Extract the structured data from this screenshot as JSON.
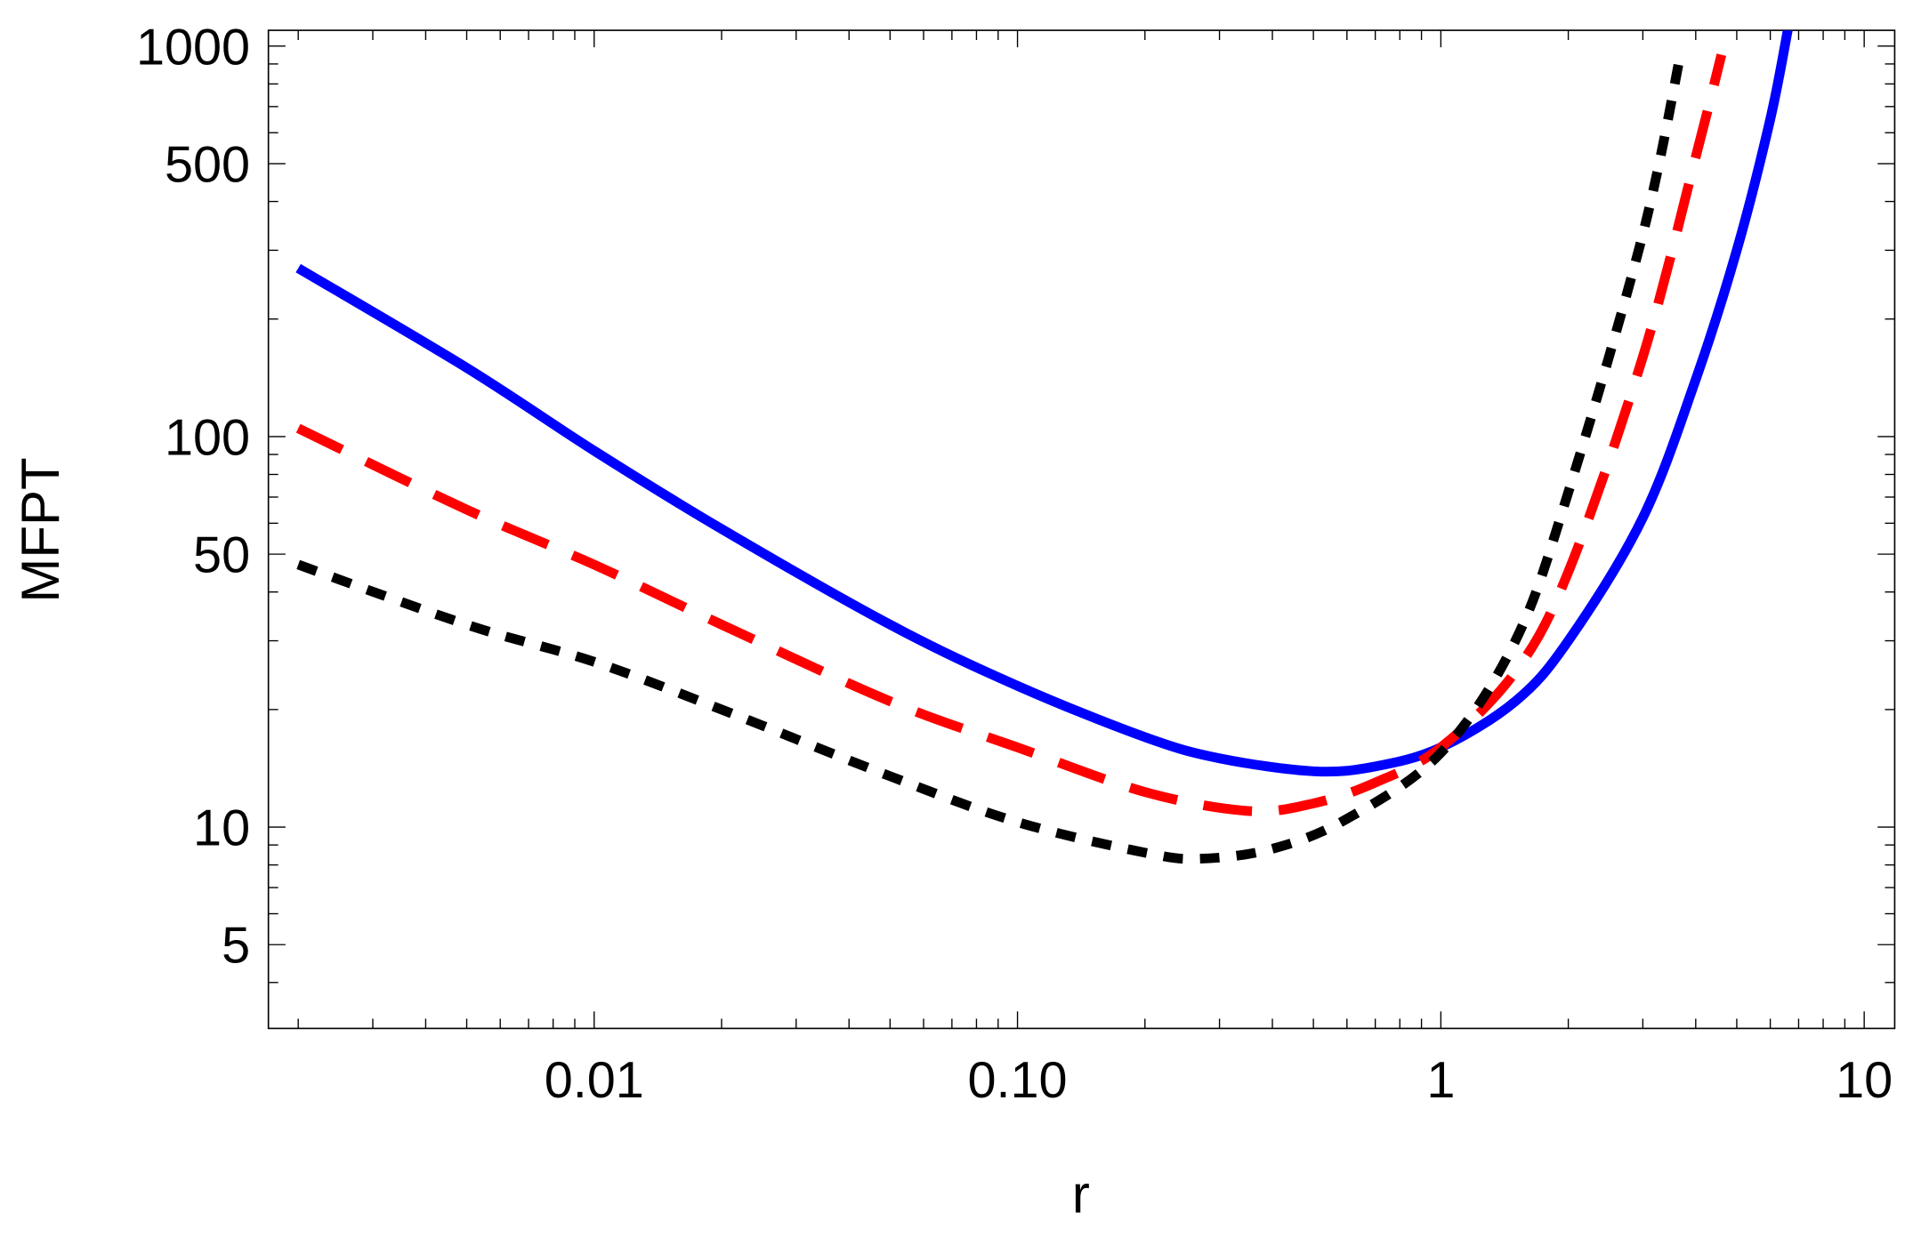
{
  "chart_data": {
    "type": "line",
    "title": "",
    "xlabel": "r",
    "ylabel": "MFPT",
    "xscale": "log",
    "yscale": "log",
    "xlim": [
      0.0017,
      11.8
    ],
    "ylim": [
      3.05,
      1100
    ],
    "grid": false,
    "legend": "none",
    "x_ticks": [
      {
        "value": 0.01,
        "label": "0.01"
      },
      {
        "value": 0.1,
        "label": "0.10"
      },
      {
        "value": 1,
        "label": "1"
      },
      {
        "value": 10,
        "label": "10"
      }
    ],
    "y_ticks": [
      {
        "value": 5,
        "label": "5"
      },
      {
        "value": 10,
        "label": "10"
      },
      {
        "value": 50,
        "label": "50"
      },
      {
        "value": 100,
        "label": "100"
      },
      {
        "value": 500,
        "label": "500"
      },
      {
        "value": 1000,
        "label": "1000"
      }
    ],
    "series": [
      {
        "name": "solid-blue",
        "color": "#0000ff",
        "style": "solid",
        "x": [
          0.002,
          0.005,
          0.01,
          0.02,
          0.05,
          0.1,
          0.2,
          0.3,
          0.5,
          0.7,
          1,
          1.5,
          2,
          3,
          4,
          5,
          6,
          6.6
        ],
        "y": [
          270,
          150,
          92,
          58,
          33,
          23,
          17,
          15,
          13.9,
          14.3,
          16,
          21,
          30,
          62,
          140,
          300,
          650,
          1100
        ]
      },
      {
        "name": "dashed-red",
        "color": "#ff0000",
        "style": "dashed",
        "x": [
          0.002,
          0.005,
          0.01,
          0.02,
          0.05,
          0.1,
          0.2,
          0.35,
          0.5,
          0.7,
          1,
          1.5,
          2,
          3,
          4,
          4.6
        ],
        "y": [
          105,
          65,
          47,
          33,
          21,
          16,
          12.3,
          11,
          11.5,
          13,
          16,
          25,
          45,
          160,
          520,
          950
        ]
      },
      {
        "name": "dotted-black",
        "color": "#000000",
        "style": "dotted",
        "x": [
          0.002,
          0.005,
          0.01,
          0.02,
          0.05,
          0.1,
          0.2,
          0.27,
          0.4,
          0.6,
          1,
          1.5,
          2,
          3,
          3.7
        ],
        "y": [
          47,
          33,
          26.5,
          20,
          13.5,
          10.3,
          8.6,
          8.3,
          8.8,
          10.5,
          15.5,
          30,
          72,
          330,
          980
        ]
      }
    ]
  }
}
